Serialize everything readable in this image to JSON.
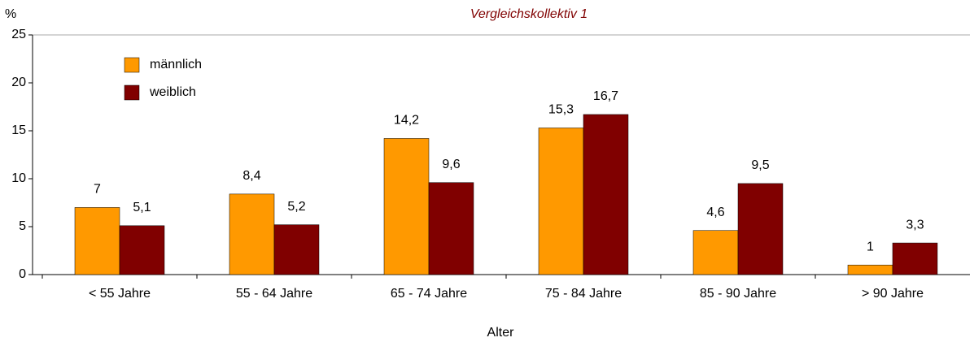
{
  "chart_data": {
    "type": "bar",
    "title": "Vergleichskollektiv 1",
    "y_label": "%",
    "x_label": "Alter",
    "categories": [
      "< 55 Jahre",
      "55 - 64 Jahre",
      "65 - 74 Jahre",
      "75 - 84 Jahre",
      "85 - 90 Jahre",
      "> 90 Jahre"
    ],
    "series": [
      {
        "name": "männlich",
        "color": "#ff9900",
        "values": [
          7,
          8.4,
          14.2,
          15.3,
          4.6,
          1
        ],
        "value_labels": [
          "7",
          "8,4",
          "14,2",
          "15,3",
          "4,6",
          "1"
        ]
      },
      {
        "name": "weiblich",
        "color": "#800000",
        "values": [
          5.1,
          5.2,
          9.6,
          16.7,
          9.5,
          3.3
        ],
        "value_labels": [
          "5,1",
          "5,2",
          "9,6",
          "16,7",
          "9,5",
          "3,3"
        ]
      }
    ],
    "ylim": [
      0,
      25
    ],
    "yticks": [
      0,
      5,
      10,
      15,
      20,
      25
    ],
    "grid": false,
    "legend": "top-left"
  }
}
